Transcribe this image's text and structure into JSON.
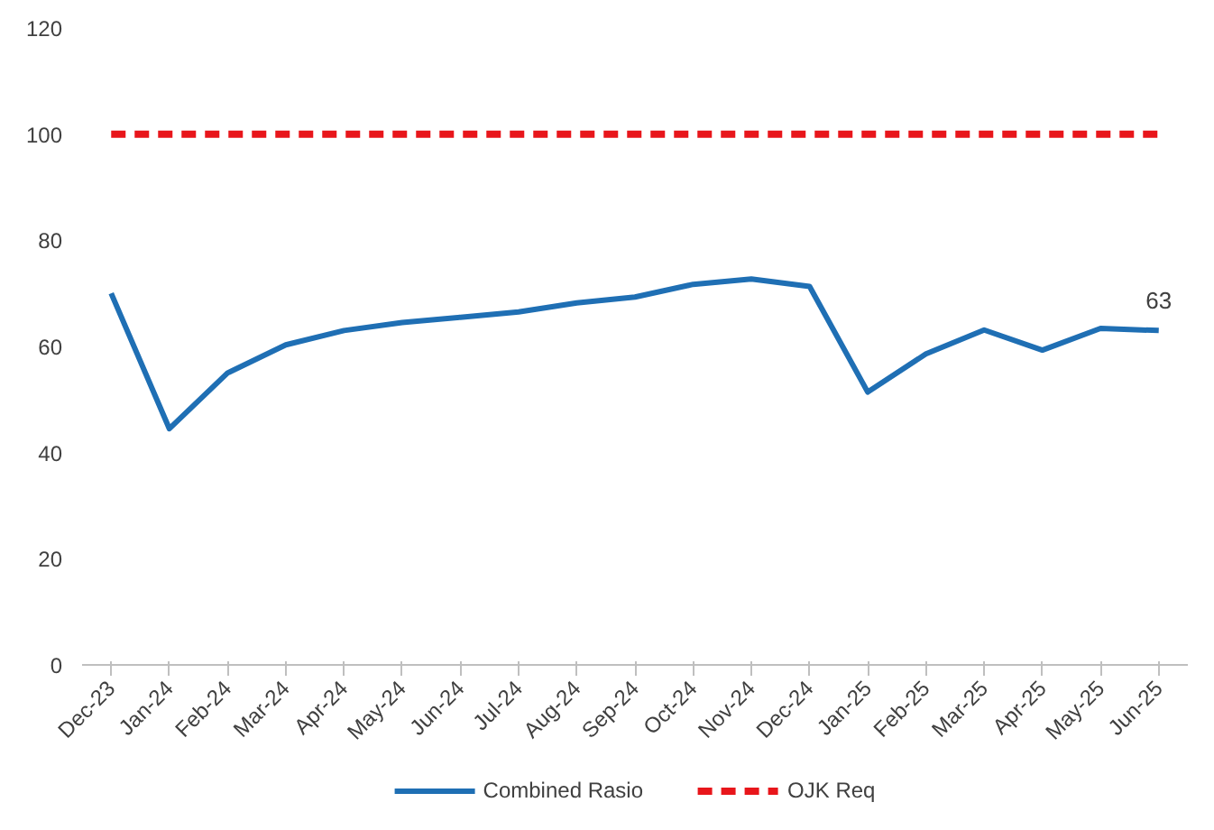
{
  "chart_data": {
    "type": "line",
    "categories": [
      "Dec-23",
      "Jan-24",
      "Feb-24",
      "Mar-24",
      "Apr-24",
      "May-24",
      "Jun-24",
      "Jul-24",
      "Aug-24",
      "Sep-24",
      "Oct-24",
      "Nov-24",
      "Dec-24",
      "Jan-25",
      "Feb-25",
      "Mar-25",
      "Apr-25",
      "May-25",
      "Jun-25"
    ],
    "series": [
      {
        "name": "Combined Rasio",
        "color": "#1f6fb4",
        "line_style": "solid",
        "values": [
          70,
          44.5,
          55,
          60.3,
          63,
          64.5,
          65.5,
          66.5,
          68.2,
          69.3,
          71.7,
          72.7,
          71.3,
          51.4,
          58.6,
          63.1,
          59.3,
          63.4,
          63
        ],
        "value_labels": [
          null,
          null,
          null,
          null,
          null,
          null,
          null,
          null,
          null,
          null,
          null,
          null,
          null,
          null,
          null,
          null,
          null,
          null,
          "63"
        ]
      },
      {
        "name": "OJK Req",
        "color": "#e8161b",
        "line_style": "dashed",
        "values": [
          100,
          100,
          100,
          100,
          100,
          100,
          100,
          100,
          100,
          100,
          100,
          100,
          100,
          100,
          100,
          100,
          100,
          100,
          100
        ]
      }
    ],
    "ylim": [
      0,
      120
    ],
    "yticks": [
      0,
      20,
      40,
      60,
      80,
      100,
      120
    ],
    "grid": false,
    "legend": "bottom",
    "marker": "none"
  }
}
